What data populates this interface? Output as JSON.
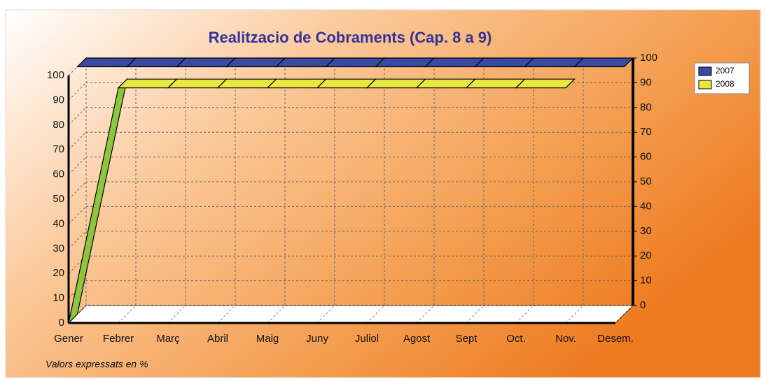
{
  "chart_data": {
    "type": "line3d",
    "title": "Realitzacio de Cobraments (Cap. 8 a 9)",
    "footnote": "Valors expressats en %",
    "categories": [
      "Gener",
      "Febrer",
      "Març",
      "Abril",
      "Maig",
      "Juny",
      "Juliol",
      "Agost",
      "Sept",
      "Oct.",
      "Nov.",
      "Desem."
    ],
    "series": [
      {
        "name": "2007",
        "color": "#3a4aa0",
        "values": [
          100,
          100,
          100,
          100,
          100,
          100,
          100,
          100,
          100,
          100,
          100,
          100
        ]
      },
      {
        "name": "2008",
        "color": "#e8e840",
        "values": [
          0,
          95,
          95,
          95,
          95,
          95,
          95,
          95,
          95,
          95,
          95,
          null
        ]
      }
    ],
    "ylim": [
      0,
      100
    ],
    "yticks": [
      0,
      10,
      20,
      30,
      40,
      50,
      60,
      70,
      80,
      90,
      100
    ],
    "y2lim": [
      0,
      100
    ],
    "y2ticks": [
      0,
      10,
      20,
      30,
      40,
      50,
      60,
      70,
      80,
      90,
      100
    ],
    "grid": true,
    "legend": "top-right"
  }
}
